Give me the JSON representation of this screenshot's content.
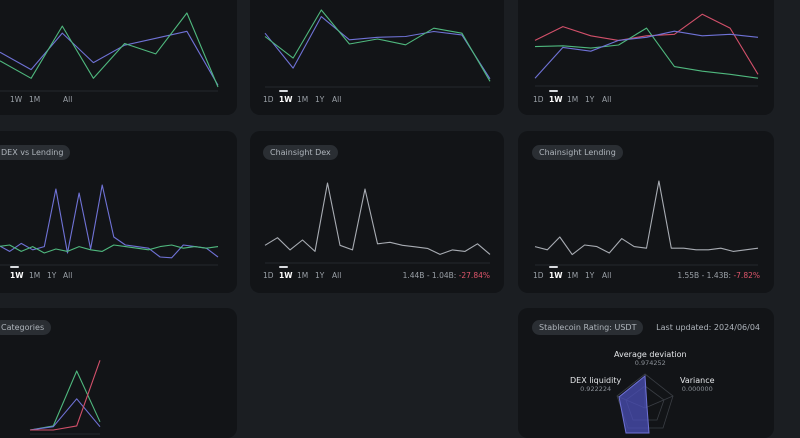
{
  "colors": {
    "blue": "#6f72d6",
    "green": "#4fb87e",
    "red": "#d2506a",
    "gray": "#a8acb3",
    "negative": "#e0566b"
  },
  "time_tabs": [
    "1D",
    "1W",
    "1M",
    "1Y",
    "All"
  ],
  "cards": {
    "top_left": {},
    "top_middle": {},
    "top_right": {},
    "dex_vs_lending": {
      "title": "DEX vs Lending"
    },
    "chainsight_dex": {
      "title": "Chainsight Dex",
      "range_text": "1.44B - 1.04B:",
      "change_text": "-27.84%"
    },
    "chainsight_lending": {
      "title": "Chainsight Lending",
      "range_text": "1.55B - 1.43B:",
      "change_text": "-7.82%"
    },
    "categories": {
      "title": "Categories"
    },
    "stablecoin": {
      "title": "Stablecoin Rating: USDT",
      "last_updated": "Last updated: 2024/06/04",
      "axes": [
        {
          "label": "Average deviation",
          "value": "0.974252"
        },
        {
          "label": "DEX liquidity",
          "value": "0.922224"
        },
        {
          "label": "Variance",
          "value": "0.000000"
        }
      ]
    }
  },
  "chart_data": [
    {
      "type": "line",
      "id": "top_left",
      "x": [
        0,
        1,
        2,
        3,
        4,
        5,
        6,
        7
      ],
      "series": [
        {
          "color": "blue",
          "values": [
            40,
            20,
            62,
            28,
            48,
            56,
            64,
            2
          ]
        },
        {
          "color": "green",
          "values": [
            30,
            10,
            70,
            10,
            50,
            38,
            85,
            0
          ]
        }
      ],
      "ylim": [
        0,
        100
      ]
    },
    {
      "type": "line",
      "id": "top_middle",
      "x": [
        0,
        1,
        2,
        3,
        4,
        5,
        6,
        7,
        8
      ],
      "series": [
        {
          "color": "blue",
          "values": [
            60,
            18,
            80,
            52,
            55,
            56,
            62,
            58,
            5
          ]
        },
        {
          "color": "green",
          "values": [
            56,
            30,
            88,
            47,
            53,
            46,
            66,
            60,
            2
          ]
        }
      ],
      "ylim": [
        0,
        100
      ]
    },
    {
      "type": "line",
      "id": "top_right",
      "x": [
        0,
        1,
        2,
        3,
        4,
        5,
        6,
        7,
        8
      ],
      "series": [
        {
          "color": "red",
          "values": [
            54,
            72,
            60,
            54,
            60,
            62,
            88,
            70,
            10
          ]
        },
        {
          "color": "green",
          "values": [
            46,
            47,
            44,
            48,
            70,
            20,
            14,
            10,
            5
          ]
        },
        {
          "color": "blue",
          "values": [
            5,
            45,
            40,
            54,
            58,
            66,
            60,
            62,
            58
          ]
        }
      ],
      "ylim": [
        0,
        100
      ]
    },
    {
      "type": "line",
      "id": "dex_vs_lending",
      "x": [
        0,
        1,
        2,
        3,
        4,
        5,
        6,
        7,
        8,
        9,
        10,
        11,
        12,
        13,
        14,
        15,
        16,
        17,
        18,
        19
      ],
      "series": [
        {
          "color": "blue",
          "values": [
            20,
            12,
            22,
            14,
            18,
            90,
            10,
            85,
            15,
            95,
            30,
            20,
            18,
            16,
            5,
            4,
            20,
            18,
            16,
            5
          ]
        },
        {
          "color": "green",
          "values": [
            18,
            20,
            12,
            18,
            10,
            15,
            12,
            18,
            14,
            12,
            20,
            18,
            16,
            14,
            18,
            20,
            16,
            18,
            16,
            18
          ]
        }
      ],
      "ylim": [
        0,
        100
      ]
    },
    {
      "type": "line",
      "id": "chainsight_dex",
      "x": [
        0,
        1,
        2,
        3,
        4,
        5,
        6,
        7,
        8,
        9,
        10,
        11,
        12,
        13,
        14,
        15,
        16,
        17,
        18
      ],
      "series": [
        {
          "color": "gray",
          "values": [
            18,
            28,
            12,
            25,
            10,
            100,
            18,
            12,
            92,
            20,
            22,
            18,
            16,
            14,
            6,
            12,
            10,
            20,
            6
          ]
        }
      ],
      "ylim": [
        0,
        100
      ]
    },
    {
      "type": "line",
      "id": "chainsight_lending",
      "x": [
        0,
        1,
        2,
        3,
        4,
        5,
        6,
        7,
        8,
        9,
        10,
        11,
        12,
        13,
        14,
        15,
        16,
        17,
        18
      ],
      "series": [
        {
          "color": "gray",
          "values": [
            18,
            14,
            30,
            8,
            20,
            18,
            10,
            28,
            18,
            16,
            100,
            16,
            16,
            14,
            14,
            16,
            12,
            14,
            16
          ]
        }
      ],
      "ylim": [
        0,
        100
      ]
    },
    {
      "type": "line",
      "id": "categories",
      "x": [
        0,
        1,
        2,
        3
      ],
      "series": [
        {
          "color": "green",
          "values": [
            0,
            5,
            72,
            10
          ]
        },
        {
          "color": "blue",
          "values": [
            0,
            4,
            38,
            4
          ]
        },
        {
          "color": "red",
          "values": [
            0,
            0,
            5,
            85
          ]
        }
      ],
      "ylim": [
        0,
        100
      ]
    }
  ]
}
